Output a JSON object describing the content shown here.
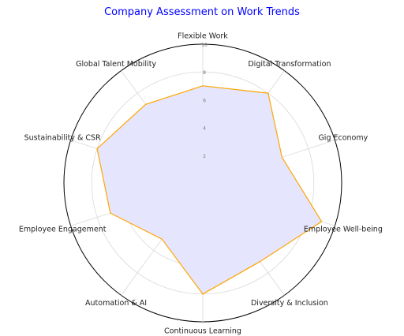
{
  "chart_data": {
    "type": "radar",
    "title": "Company Assessment on Work Trends",
    "categories": [
      "Flexible Work",
      "Digital Transformation",
      "Gig Economy",
      "Employee Well-being",
      "Diversity & Inclusion",
      "Continuous Learning",
      "Automation & AI",
      "Employee Engagement",
      "Sustainability & CSR",
      "Global Talent Mobility"
    ],
    "series": [
      {
        "values": [
          7,
          8,
          6,
          9,
          7,
          8,
          5,
          7,
          8,
          7
        ]
      }
    ],
    "rlim": [
      0,
      10
    ],
    "rticks": [
      "2",
      "4",
      "6",
      "8",
      "10"
    ],
    "grid": true,
    "colors": {
      "fill": "#e5e5fd",
      "line": "#ffa500",
      "grid": "#d9d9d9",
      "outer": "#000000",
      "title": "#0000ff"
    }
  }
}
